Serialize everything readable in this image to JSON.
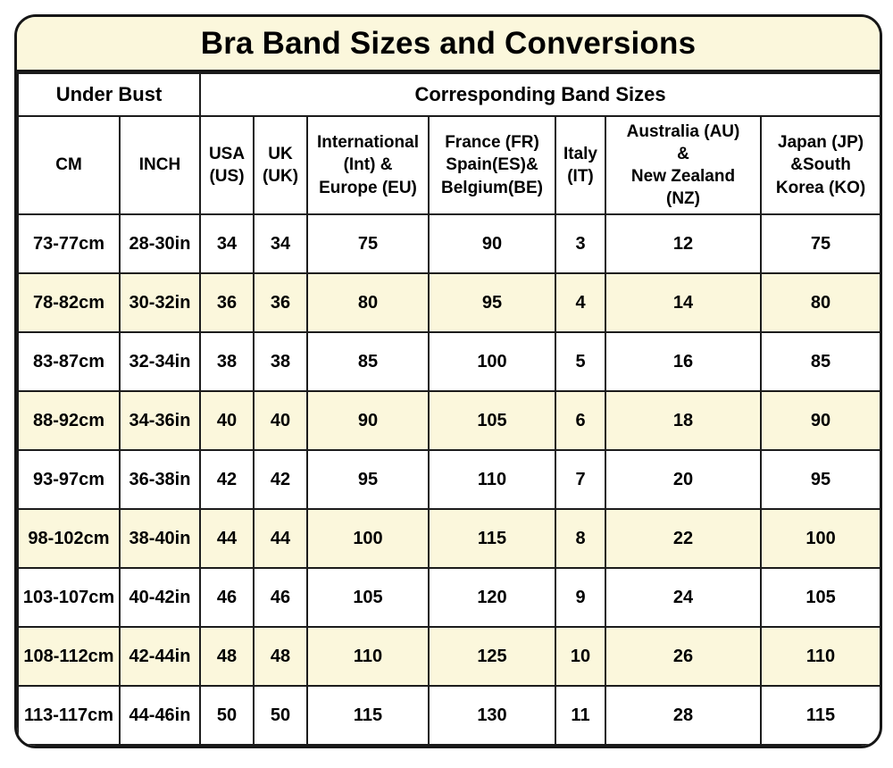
{
  "title": "Bra Band Sizes and Conversions",
  "colors": {
    "cream_background": "#FBF7DC",
    "row_highlight": "#FBF7DC",
    "border": "#1C1C1C",
    "text": "#000000",
    "page_background": "#FFFFFF"
  },
  "chart_data": {
    "type": "table",
    "title": "Bra Band Sizes and Conversions",
    "column_groups": [
      {
        "label": "Under Bust",
        "span": 2
      },
      {
        "label": "Corresponding Band Sizes",
        "span": 7
      }
    ],
    "columns": [
      "CM",
      "INCH",
      "USA\n(US)",
      "UK\n(UK)",
      "International\n(Int) &\nEurope (EU)",
      "France (FR)\nSpain(ES)&\nBelgium(BE)",
      "Italy\n(IT)",
      "Australia (AU)\n&\nNew Zealand\n(NZ)",
      "Japan (JP)\n&South\nKorea (KO)"
    ],
    "rows": [
      [
        "73-77cm",
        "28-30in",
        "34",
        "34",
        "75",
        "90",
        "3",
        "12",
        "75"
      ],
      [
        "78-82cm",
        "30-32in",
        "36",
        "36",
        "80",
        "95",
        "4",
        "14",
        "80"
      ],
      [
        "83-87cm",
        "32-34in",
        "38",
        "38",
        "85",
        "100",
        "5",
        "16",
        "85"
      ],
      [
        "88-92cm",
        "34-36in",
        "40",
        "40",
        "90",
        "105",
        "6",
        "18",
        "90"
      ],
      [
        "93-97cm",
        "36-38in",
        "42",
        "42",
        "95",
        "110",
        "7",
        "20",
        "95"
      ],
      [
        "98-102cm",
        "38-40in",
        "44",
        "44",
        "100",
        "115",
        "8",
        "22",
        "100"
      ],
      [
        "103-107cm",
        "40-42in",
        "46",
        "46",
        "105",
        "120",
        "9",
        "24",
        "105"
      ],
      [
        "108-112cm",
        "42-44in",
        "48",
        "48",
        "110",
        "125",
        "10",
        "26",
        "110"
      ],
      [
        "113-117cm",
        "44-46in",
        "50",
        "50",
        "115",
        "130",
        "11",
        "28",
        "115"
      ]
    ],
    "layout_hints": {
      "alternating_row_shading": "odd rows white, even rows cream",
      "all_text_bold": true,
      "rounded_outer_corners": true
    }
  }
}
